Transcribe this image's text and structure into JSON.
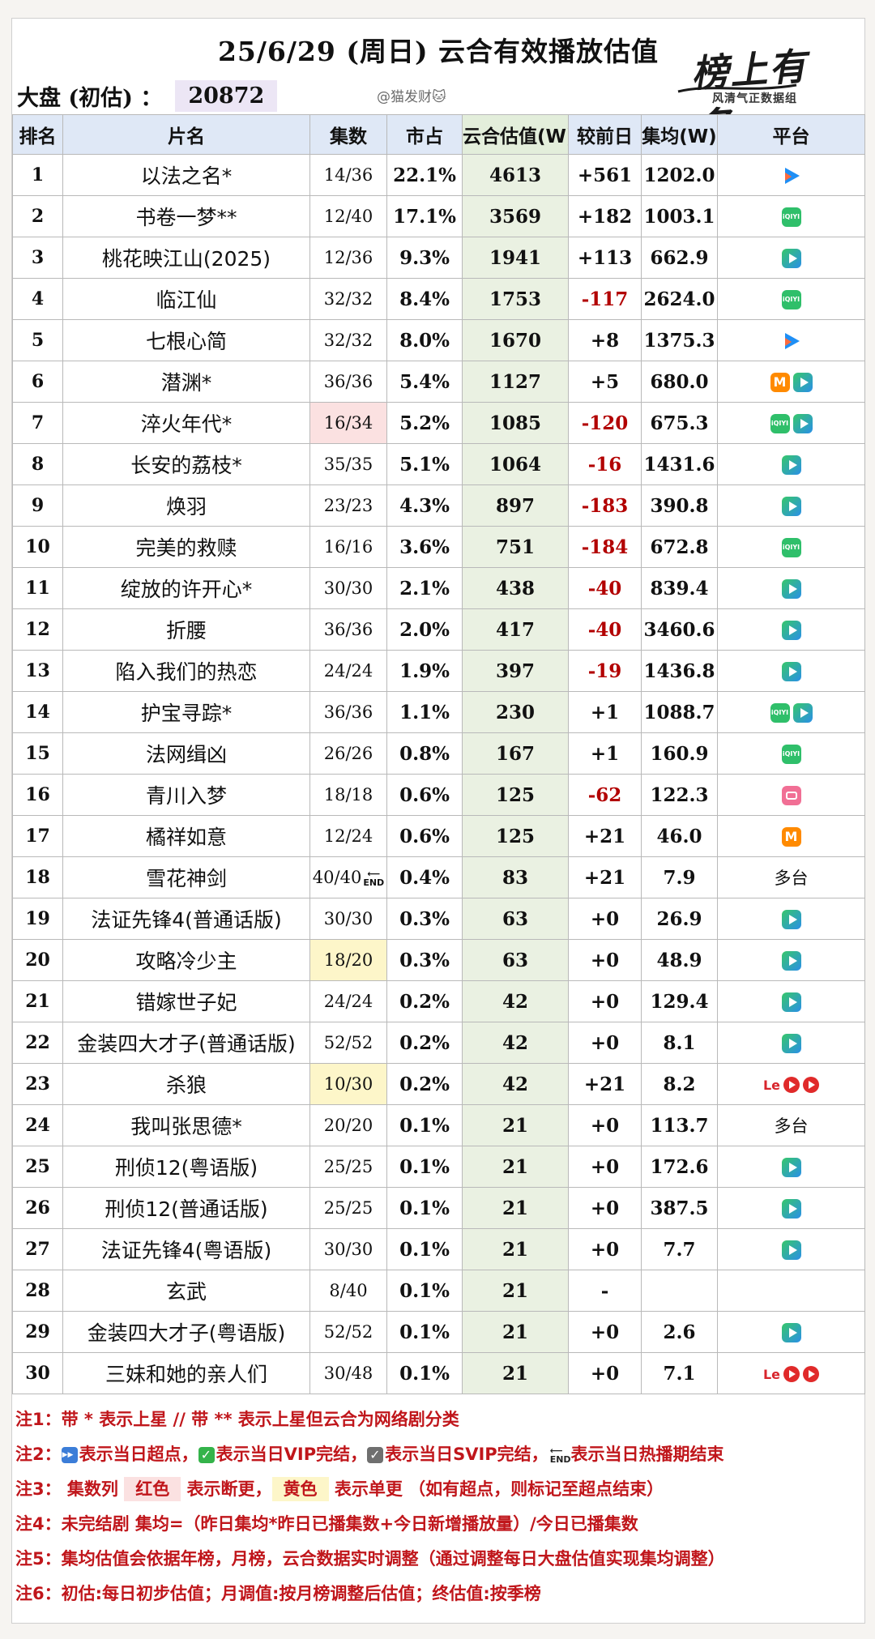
{
  "header": {
    "title": "25/6/29 (周日) 云合有效播放估值",
    "market_label": "大盘 (初估) ：",
    "market_value": "20872",
    "handle": "@猫发财🐱",
    "logo_text": "榜上有名",
    "logo_sub": "风清气正数据组"
  },
  "columns": [
    "排名",
    "片名",
    "集数",
    "市占",
    "云合估值(W)",
    "较前日",
    "集均(W)",
    "平台"
  ],
  "rows": [
    {
      "rank": "1",
      "name": "以法之名*",
      "ep": "14/36",
      "share": "22.1%",
      "yun": "4613",
      "chg": "+561",
      "avg": "1202.0",
      "plat": "blue"
    },
    {
      "rank": "2",
      "name": "书卷一梦**",
      "ep": "12/40",
      "share": "17.1%",
      "yun": "3569",
      "chg": "+182",
      "avg": "1003.1",
      "plat": "iqiyi"
    },
    {
      "rank": "3",
      "name": "桃花映江山(2025)",
      "ep": "12/36",
      "share": "9.3%",
      "yun": "1941",
      "chg": "+113",
      "avg": "662.9",
      "plat": "tencent"
    },
    {
      "rank": "4",
      "name": "临江仙",
      "ep": "32/32",
      "share": "8.4%",
      "yun": "1753",
      "chg": "-117",
      "avg": "2624.0",
      "plat": "iqiyi"
    },
    {
      "rank": "5",
      "name": "七根心简",
      "ep": "32/32",
      "share": "8.0%",
      "yun": "1670",
      "chg": "+8",
      "avg": "1375.3",
      "plat": "blue"
    },
    {
      "rank": "6",
      "name": "潜渊*",
      "ep": "36/36",
      "share": "5.4%",
      "yun": "1127",
      "chg": "+5",
      "avg": "680.0",
      "plat": "mango-tencent"
    },
    {
      "rank": "7",
      "name": "淬火年代*",
      "ep": "16/34",
      "share": "5.2%",
      "yun": "1085",
      "chg": "-120",
      "avg": "675.3",
      "plat": "iqiyi-tencent",
      "ep_hl": "red"
    },
    {
      "rank": "8",
      "name": "长安的荔枝*",
      "ep": "35/35",
      "share": "5.1%",
      "yun": "1064",
      "chg": "-16",
      "avg": "1431.6",
      "plat": "tencent"
    },
    {
      "rank": "9",
      "name": "焕羽",
      "ep": "23/23",
      "share": "4.3%",
      "yun": "897",
      "chg": "-183",
      "avg": "390.8",
      "plat": "tencent"
    },
    {
      "rank": "10",
      "name": "完美的救赎",
      "ep": "16/16",
      "share": "3.6%",
      "yun": "751",
      "chg": "-184",
      "avg": "672.8",
      "plat": "iqiyi"
    },
    {
      "rank": "11",
      "name": "绽放的许开心*",
      "ep": "30/30",
      "share": "2.1%",
      "yun": "438",
      "chg": "-40",
      "avg": "839.4",
      "plat": "tencent"
    },
    {
      "rank": "12",
      "name": "折腰",
      "ep": "36/36",
      "share": "2.0%",
      "yun": "417",
      "chg": "-40",
      "avg": "3460.6",
      "plat": "tencent"
    },
    {
      "rank": "13",
      "name": "陷入我们的热恋",
      "ep": "24/24",
      "share": "1.9%",
      "yun": "397",
      "chg": "-19",
      "avg": "1436.8",
      "plat": "tencent"
    },
    {
      "rank": "14",
      "name": "护宝寻踪*",
      "ep": "36/36",
      "share": "1.1%",
      "yun": "230",
      "chg": "+1",
      "avg": "1088.7",
      "plat": "iqiyi-tencent"
    },
    {
      "rank": "15",
      "name": "法网缉凶",
      "ep": "26/26",
      "share": "0.8%",
      "yun": "167",
      "chg": "+1",
      "avg": "160.9",
      "plat": "iqiyi"
    },
    {
      "rank": "16",
      "name": "青川入梦",
      "ep": "18/18",
      "share": "0.6%",
      "yun": "125",
      "chg": "-62",
      "avg": "122.3",
      "plat": "bili"
    },
    {
      "rank": "17",
      "name": "橘祥如意",
      "ep": "12/24",
      "share": "0.6%",
      "yun": "125",
      "chg": "+21",
      "avg": "46.0",
      "plat": "mango"
    },
    {
      "rank": "18",
      "name": "雪花神剑",
      "ep": "40/40",
      "ep_end": true,
      "share": "0.4%",
      "yun": "83",
      "chg": "+21",
      "avg": "7.9",
      "plat": "text",
      "plat_text": "多台"
    },
    {
      "rank": "19",
      "name": "法证先锋4(普通话版)",
      "ep": "30/30",
      "share": "0.3%",
      "yun": "63",
      "chg": "+0",
      "avg": "26.9",
      "plat": "tencent"
    },
    {
      "rank": "20",
      "name": "攻略冷少主",
      "ep": "18/20",
      "share": "0.3%",
      "yun": "63",
      "chg": "+0",
      "avg": "48.9",
      "plat": "tencent",
      "ep_hl": "yellow"
    },
    {
      "rank": "21",
      "name": "错嫁世子妃",
      "ep": "24/24",
      "share": "0.2%",
      "yun": "42",
      "chg": "+0",
      "avg": "129.4",
      "plat": "tencent"
    },
    {
      "rank": "22",
      "name": "金装四大才子(普通话版)",
      "ep": "52/52",
      "share": "0.2%",
      "yun": "42",
      "chg": "+0",
      "avg": "8.1",
      "plat": "tencent"
    },
    {
      "rank": "23",
      "name": "杀狼",
      "ep": "10/30",
      "share": "0.2%",
      "yun": "42",
      "chg": "+21",
      "avg": "8.2",
      "plat": "le",
      "ep_hl": "yellow"
    },
    {
      "rank": "24",
      "name": "我叫张思德*",
      "ep": "20/20",
      "share": "0.1%",
      "yun": "21",
      "chg": "+0",
      "avg": "113.7",
      "plat": "text",
      "plat_text": "多台"
    },
    {
      "rank": "25",
      "name": "刑侦12(粤语版)",
      "ep": "25/25",
      "share": "0.1%",
      "yun": "21",
      "chg": "+0",
      "avg": "172.6",
      "plat": "tencent"
    },
    {
      "rank": "26",
      "name": "刑侦12(普通话版)",
      "ep": "25/25",
      "share": "0.1%",
      "yun": "21",
      "chg": "+0",
      "avg": "387.5",
      "plat": "tencent"
    },
    {
      "rank": "27",
      "name": "法证先锋4(粤语版)",
      "ep": "30/30",
      "share": "0.1%",
      "yun": "21",
      "chg": "+0",
      "avg": "7.7",
      "plat": "tencent"
    },
    {
      "rank": "28",
      "name": "玄武",
      "ep": "8/40",
      "share": "0.1%",
      "yun": "21",
      "chg": "-",
      "avg": "",
      "plat": "none"
    },
    {
      "rank": "29",
      "name": "金装四大才子(粤语版)",
      "ep": "52/52",
      "share": "0.1%",
      "yun": "21",
      "chg": "+0",
      "avg": "2.6",
      "plat": "tencent"
    },
    {
      "rank": "30",
      "name": "三妹和她的亲人们",
      "ep": "30/48",
      "share": "0.1%",
      "yun": "21",
      "chg": "+0",
      "avg": "7.1",
      "plat": "le"
    }
  ],
  "notes": {
    "n1": "注1：带 * 表示上星 // 带 ** 表示上星但云合为网络剧分类",
    "n2_prefix": "注2：",
    "n2_a": "表示当日超点，",
    "n2_b": "表示当日VIP完结，",
    "n2_c": "表示当日SVIP完结，",
    "n2_d": "表示当日热播期结束",
    "n3_prefix": "注3：  集数列 ",
    "n3_red": "红色",
    "n3_mid": " 表示断更，",
    "n3_yellow": "黄色",
    "n3_suffix": " 表示单更 （如有超点，则标记至超点结束）",
    "n4": "注4：未完结剧 集均=（昨日集均*昨日已播集数+今日新增播放量）/今日已播集数",
    "n5": "注5：集均估值会依据年榜，月榜，云合数据实时调整（通过调整每日大盘估值实现集均调整）",
    "n6": "注6：初估:每日初步估值；月调值:按月榜调整后估值；终估值:按季榜"
  },
  "colors": {
    "negative": "#b20000",
    "note_red": "#c0161b",
    "header_bg": "#dfe8f6",
    "yun_bg": "#eaf1e2"
  }
}
